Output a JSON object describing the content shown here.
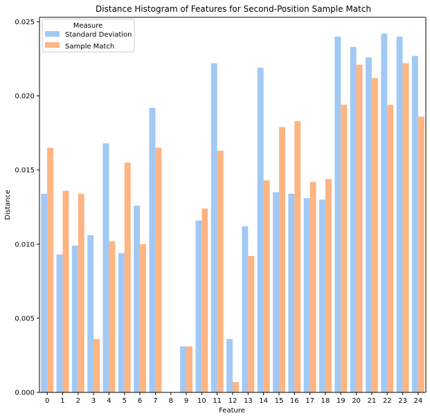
{
  "chart_data": {
    "type": "bar",
    "title": "Distance Histogram of Features for Second-Position Sample Match",
    "xlabel": "Feature",
    "ylabel": "Distance",
    "categories": [
      "0",
      "1",
      "2",
      "3",
      "4",
      "5",
      "6",
      "7",
      "8",
      "9",
      "10",
      "11",
      "12",
      "13",
      "14",
      "15",
      "16",
      "17",
      "18",
      "19",
      "20",
      "21",
      "22",
      "23",
      "24"
    ],
    "ylim": [
      0,
      0.0253
    ],
    "yticks": [
      "0.000",
      "0.005",
      "0.010",
      "0.015",
      "0.020",
      "0.025"
    ],
    "grid": false,
    "legend": {
      "title": "Measure",
      "placement": "top-left"
    },
    "series": [
      {
        "name": "Standard Deviation",
        "color": "#a1c9f4",
        "values": [
          0.0134,
          0.0093,
          0.0099,
          0.0106,
          0.0168,
          0.0094,
          0.0126,
          0.0192,
          0.0,
          0.0031,
          0.0116,
          0.0222,
          0.0036,
          0.0112,
          0.0219,
          0.0135,
          0.0134,
          0.0131,
          0.013,
          0.024,
          0.0233,
          0.0226,
          0.0242,
          0.024,
          0.0227
        ]
      },
      {
        "name": "Sample Match",
        "color": "#ffb482",
        "values": [
          0.0165,
          0.0136,
          0.0134,
          0.0036,
          0.0102,
          0.0155,
          0.01,
          0.0165,
          0.0,
          0.0031,
          0.0124,
          0.0163,
          0.0007,
          0.0092,
          0.0143,
          0.0179,
          0.0183,
          0.0142,
          0.0144,
          0.0194,
          0.0221,
          0.0212,
          0.0194,
          0.0222,
          0.0186
        ]
      }
    ]
  }
}
